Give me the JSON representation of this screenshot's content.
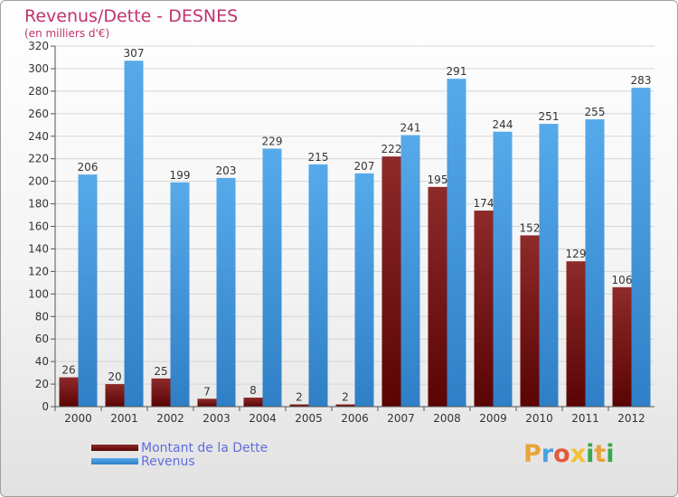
{
  "header": {
    "title": "Revenus/Dette - DESNES",
    "subtitle": "(en milliers d'€)"
  },
  "colors": {
    "dette": "#7a1010",
    "revenus": "#3d94dc",
    "title": "#c0336e",
    "legend_text": "#5f6ddc"
  },
  "legend": {
    "dette_label": "Montant de la Dette",
    "revenus_label": "Revenus"
  },
  "logo": {
    "text": "Proxiti"
  },
  "chart_data": {
    "type": "bar",
    "title": "Revenus/Dette - DESNES",
    "subtitle": "(en milliers d'€)",
    "xlabel": "",
    "ylabel": "",
    "categories": [
      "2000",
      "2001",
      "2002",
      "2003",
      "2004",
      "2005",
      "2006",
      "2007",
      "2008",
      "2009",
      "2010",
      "2011",
      "2012"
    ],
    "series": [
      {
        "name": "Montant de la Dette",
        "values": [
          26,
          20,
          25,
          7,
          8,
          2,
          2,
          222,
          195,
          174,
          152,
          129,
          106
        ]
      },
      {
        "name": "Revenus",
        "values": [
          206,
          307,
          199,
          203,
          229,
          215,
          207,
          241,
          291,
          244,
          251,
          255,
          283
        ]
      }
    ],
    "ylim": [
      0,
      320
    ],
    "yticks": [
      0,
      20,
      40,
      60,
      80,
      100,
      120,
      140,
      160,
      180,
      200,
      220,
      240,
      260,
      280,
      300,
      320
    ],
    "grid": true,
    "legend_position": "bottom-left"
  }
}
